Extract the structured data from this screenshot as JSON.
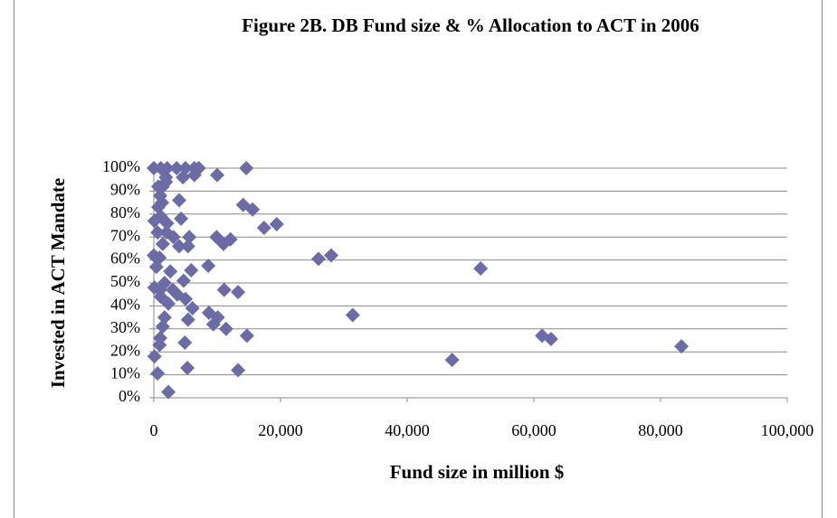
{
  "chart_data": {
    "type": "scatter",
    "title": "Figure 2B. DB Fund size & % Allocation to ACT in 2006",
    "x_label": "Fund size in million $",
    "y_label": "Invested in ACT Mandate",
    "color": "#6b6ba6",
    "x": [
      0,
      1100,
      2100,
      3600,
      5000,
      6400,
      7100,
      14600,
      10000,
      4600,
      6400,
      1900,
      1400,
      1900,
      700,
      1000,
      4000,
      700,
      14100,
      15600,
      17400,
      19400,
      100,
      1100,
      2100,
      4300,
      600,
      2000,
      3100,
      1400,
      900,
      4000,
      5600,
      9900,
      11000,
      12100,
      5400,
      0,
      400,
      8600,
      26000,
      28000,
      51600,
      1700,
      3000,
      3700,
      1000,
      2600,
      5900,
      4700,
      5000,
      6100,
      2300,
      1700,
      100,
      1100,
      11100,
      13300,
      31400,
      8700,
      10100,
      9400,
      11400,
      5400,
      1400,
      14700,
      1000,
      900,
      4900,
      61300,
      62700,
      83300,
      47100,
      100,
      5300,
      13300,
      600,
      2300,
      1300
    ],
    "values": [
      100,
      100,
      100,
      100,
      100,
      100,
      100,
      100,
      97,
      96,
      97,
      96,
      92,
      94,
      92,
      88,
      86,
      83,
      84,
      82,
      74,
      75.6,
      77,
      79,
      76,
      78,
      72,
      72,
      70,
      67,
      61,
      66,
      70,
      70,
      67,
      69,
      66,
      62,
      57,
      57.5,
      60.5,
      62,
      56.3,
      50,
      47,
      45,
      47,
      55,
      55.5,
      51,
      43,
      39,
      41,
      35,
      48,
      44,
      47,
      46,
      36,
      37,
      35,
      32,
      30,
      34,
      31,
      27,
      26,
      23,
      24,
      27,
      25.6,
      22.4,
      16.5,
      18,
      13,
      12,
      10.6,
      2.5,
      85
    ],
    "xlim": [
      0,
      100000
    ],
    "ylim": [
      0,
      100
    ],
    "xticks": [
      0,
      {
        "value": 20000,
        "label": "20,000"
      },
      {
        "value": 40000,
        "label": "40,000"
      },
      {
        "value": 60000,
        "label": "60,000"
      },
      {
        "value": 80000,
        "label": "80,000"
      },
      {
        "value": 100000,
        "label": "100,000"
      }
    ],
    "yticks": [
      {
        "value": 0,
        "label": "0%"
      },
      {
        "value": 10,
        "label": "10%"
      },
      {
        "value": 20,
        "label": "20%"
      },
      {
        "value": 30,
        "label": "30%"
      },
      {
        "value": 40,
        "label": "40%"
      },
      {
        "value": 50,
        "label": "50%"
      },
      {
        "value": 60,
        "label": "60%"
      },
      {
        "value": 70,
        "label": "70%"
      },
      {
        "value": 80,
        "label": "80%"
      },
      {
        "value": 90,
        "label": "90%"
      },
      {
        "value": 100,
        "label": "100%"
      }
    ],
    "grid": true
  }
}
